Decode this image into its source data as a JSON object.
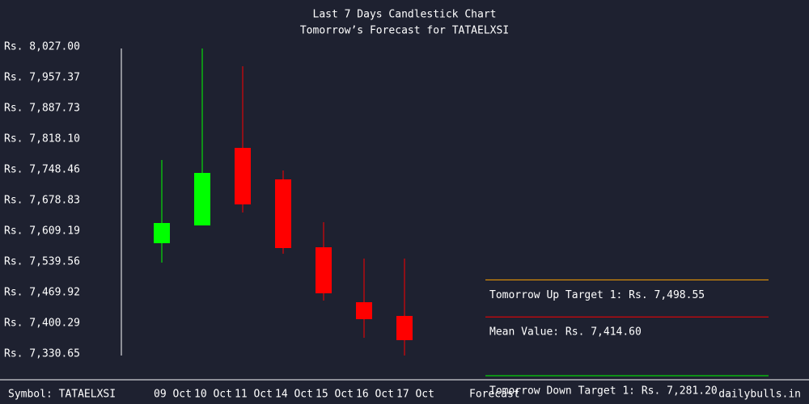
{
  "chart_data": {
    "type": "candlestick",
    "title": "Last 7 Days Candlestick Chart",
    "subtitle": "Tomorrow’s Forecast for TATAELXSI",
    "symbol": "Symbol: TATAELXSI",
    "source": "dailybulls.in",
    "forecast_label": "Forecast",
    "categories": [
      "09 Oct",
      "10 Oct",
      "11 Oct",
      "14 Oct",
      "15 Oct",
      "16 Oct",
      "17 Oct"
    ],
    "open": [
      7581.7,
      7622.0,
      7797.9,
      7726.5,
      7572.5,
      7447.9,
      7416.8
    ],
    "high": [
      7770.4,
      8023.3,
      7983.0,
      7746.6,
      7629.3,
      7546.9,
      7546.9
    ],
    "low": [
      7537.7,
      7622.0,
      7651.3,
      7557.9,
      7451.6,
      7367.3,
      7327.0
    ],
    "close": [
      7627.5,
      7741.1,
      7669.7,
      7570.7,
      7468.1,
      7409.4,
      7361.8
    ],
    "up_color": "#00ff00",
    "down_color": "#ff0000",
    "ylim": [
      7330.65,
      8027.0
    ],
    "yticks": [
      {
        "value": 8027.0,
        "label": "Rs. 8,027.00"
      },
      {
        "value": 7957.37,
        "label": "Rs. 7,957.37"
      },
      {
        "value": 7887.73,
        "label": "Rs. 7,887.73"
      },
      {
        "value": 7818.1,
        "label": "Rs. 7,818.10"
      },
      {
        "value": 7748.46,
        "label": "Rs. 7,748.46"
      },
      {
        "value": 7678.83,
        "label": "Rs. 7,678.83"
      },
      {
        "value": 7609.19,
        "label": "Rs. 7,609.19"
      },
      {
        "value": 7539.56,
        "label": "Rs. 7,539.56"
      },
      {
        "value": 7469.92,
        "label": "Rs. 7,469.92"
      },
      {
        "value": 7400.29,
        "label": "Rs. 7,400.29"
      },
      {
        "value": 7330.65,
        "label": "Rs. 7,330.65"
      }
    ],
    "forecast": [
      {
        "label": "Tomorrow Up Target 1: Rs. 7,498.55",
        "value": 7498.55,
        "color": "#ffa500"
      },
      {
        "label": "Mean Value: Rs. 7,414.60",
        "value": 7414.6,
        "color": "#ff0000"
      },
      {
        "label": "Tomorrow Down Target 1: Rs. 7,281.20",
        "value": 7281.2,
        "color": "#00ff00"
      }
    ]
  }
}
